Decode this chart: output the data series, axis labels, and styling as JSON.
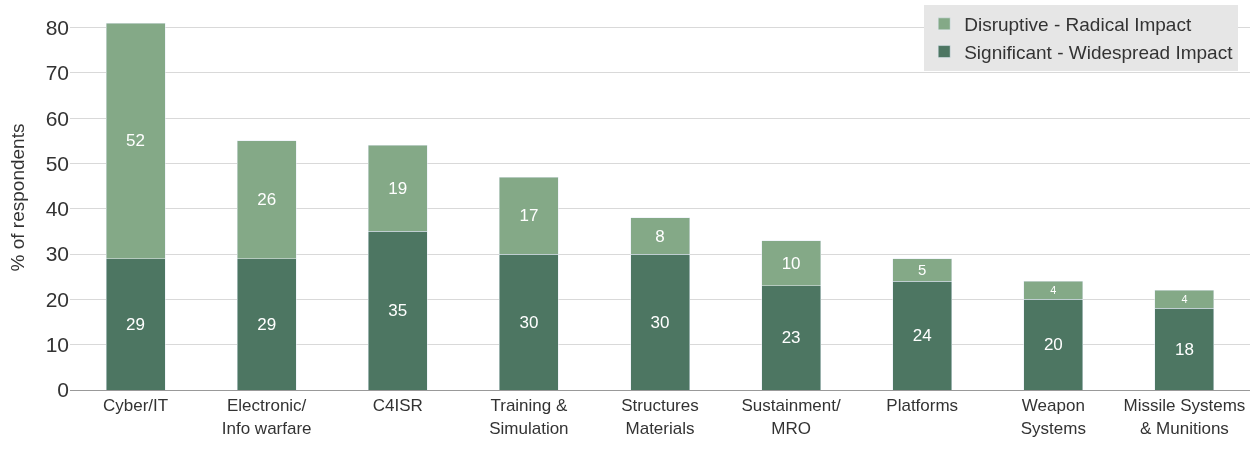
{
  "chart_data": {
    "type": "bar",
    "stacked": true,
    "ylabel": "% of respondents",
    "categories": [
      "Cyber/IT",
      "Electronic/\nInfo warfare",
      "C4ISR",
      "Training &\nSimulation",
      "Structures\nMaterials",
      "Sustainment/\nMRO",
      "Platforms",
      "Weapon\nSystems",
      "Missile Systems\n& Munitions"
    ],
    "series": [
      {
        "name": "Significant - Widespread Impact",
        "color": "#4d7662",
        "values": [
          29,
          29,
          35,
          30,
          30,
          23,
          24,
          20,
          18
        ]
      },
      {
        "name": "Disruptive - Radical Impact",
        "color": "#84a987",
        "values": [
          52,
          26,
          19,
          17,
          8,
          10,
          5,
          4,
          4
        ]
      }
    ],
    "ylim": [
      0,
      85
    ],
    "yticks": [
      0,
      10,
      20,
      30,
      40,
      50,
      60,
      70,
      80
    ],
    "grid": "y",
    "legend": "top right",
    "data_labels": true
  }
}
